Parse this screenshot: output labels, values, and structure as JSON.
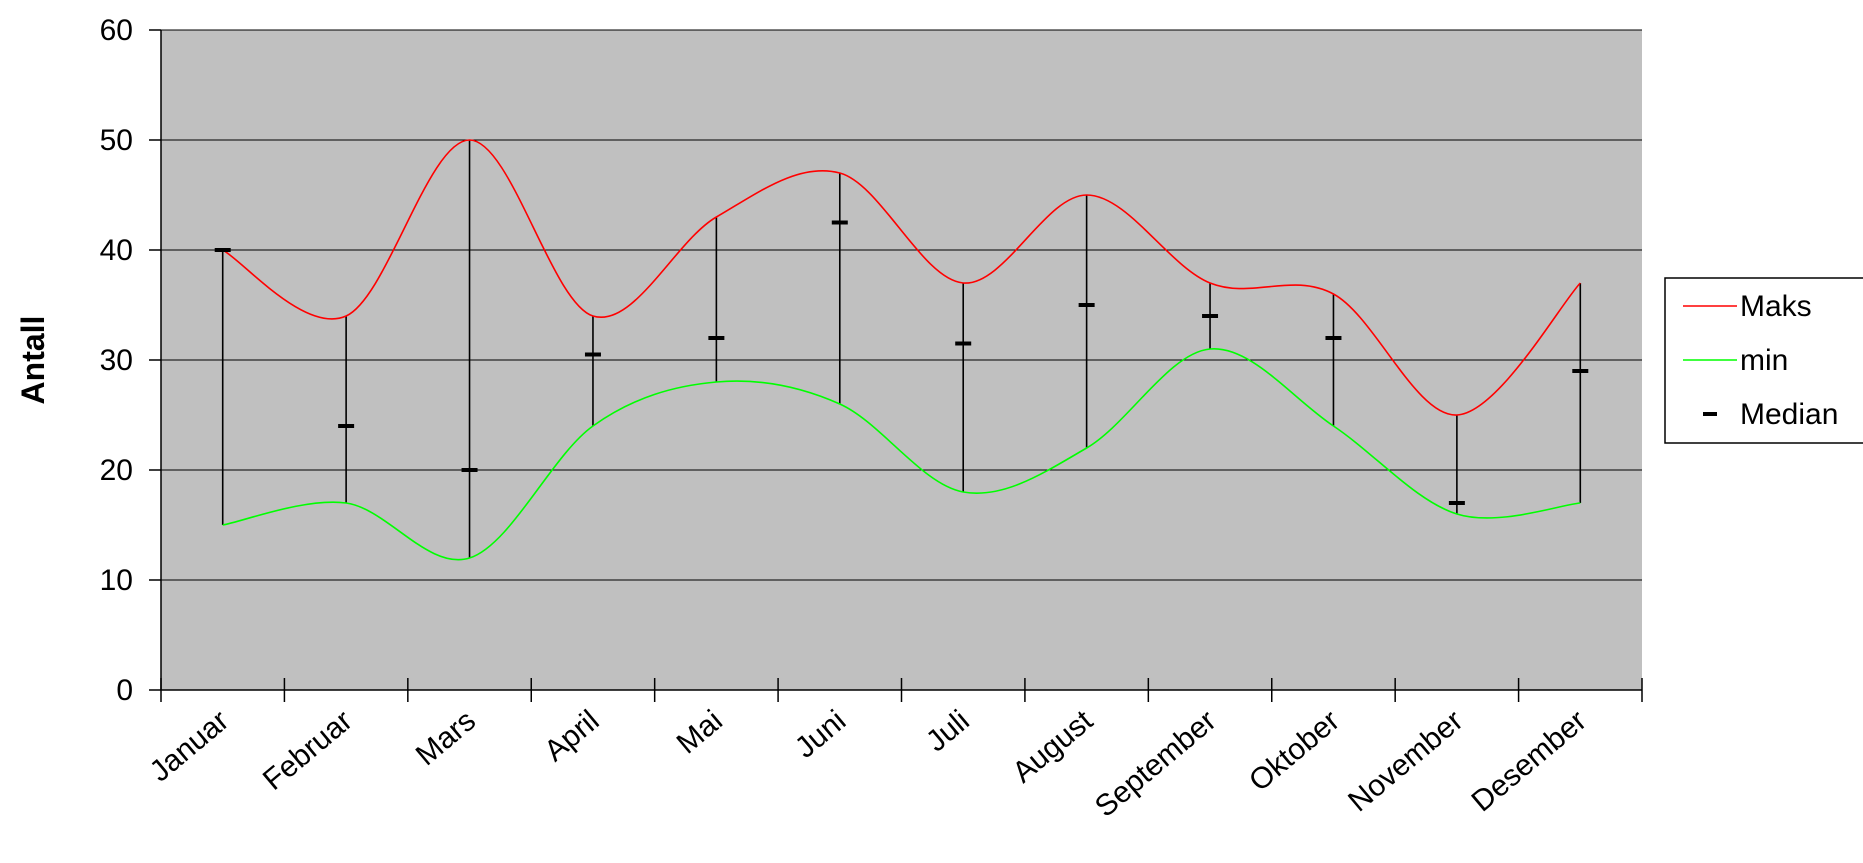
{
  "chart_data": {
    "type": "line",
    "ylabel": "Antall",
    "xlabel": "",
    "ylim": [
      0,
      60
    ],
    "yticks": [
      0,
      10,
      20,
      30,
      40,
      50,
      60
    ],
    "categories": [
      "Januar",
      "Februar",
      "Mars",
      "April",
      "Mai",
      "Juni",
      "Juli",
      "August",
      "September",
      "Oktober",
      "November",
      "Desember"
    ],
    "series": [
      {
        "name": "Maks",
        "color": "#ff0000",
        "values": [
          40,
          34,
          50,
          34,
          43,
          47,
          37,
          45,
          37,
          36,
          25,
          37
        ]
      },
      {
        "name": "min",
        "color": "#00ff00",
        "values": [
          15,
          17,
          12,
          24,
          28,
          26,
          18,
          22,
          31,
          24,
          16,
          17
        ]
      },
      {
        "name": "Median",
        "color": "#000000",
        "marker": "dash",
        "values": [
          40,
          24,
          20,
          30.5,
          32,
          42.5,
          31.5,
          35,
          34,
          32,
          17,
          29
        ]
      }
    ],
    "grid": true,
    "plot_background": "#c0c0c0",
    "legend_position": "right",
    "smoothed": true
  }
}
